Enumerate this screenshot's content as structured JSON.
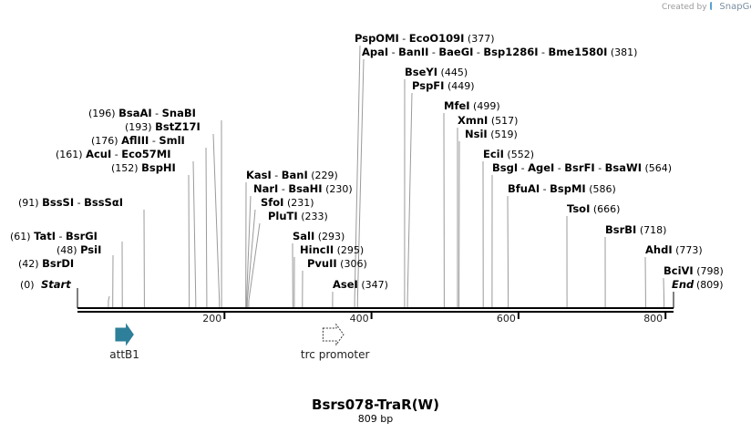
{
  "credit": {
    "text": "Created by",
    "brand": "SnapGene"
  },
  "map": {
    "title": "Bsrs078-TraR(W)",
    "length_label": "809 bp",
    "length": 809,
    "ticks": [
      "200",
      "400",
      "600",
      "800"
    ],
    "tick_values": [
      200,
      400,
      600,
      800
    ],
    "start_label": "Start",
    "start_pos": "(0)",
    "end_label": "End",
    "end_pos": "(809)",
    "features": [
      {
        "name": "attB1",
        "start": 52,
        "end": 76,
        "strand": "forward",
        "color": "#2e7f9a",
        "filled": true
      },
      {
        "name": "trc promoter",
        "start": 334,
        "end": 362,
        "strand": "forward",
        "color": "#ffffff",
        "filled": false
      }
    ],
    "sites": [
      {
        "names": [
          "BsrDI"
        ],
        "pos": 42,
        "pos_label": "(42)"
      },
      {
        "names": [
          "PsiI"
        ],
        "pos": 48,
        "pos_label": "(48)"
      },
      {
        "names": [
          "TatI",
          "BsrGI"
        ],
        "pos": 61,
        "pos_label": "(61)"
      },
      {
        "names": [
          "BssSI",
          "BssSαI"
        ],
        "pos": 91,
        "pos_label": "(91)"
      },
      {
        "names": [
          "BspHI"
        ],
        "pos": 152,
        "pos_label": "(152)"
      },
      {
        "names": [
          "AcuI",
          "Eco57MI"
        ],
        "pos": 161,
        "pos_label": "(161)"
      },
      {
        "names": [
          "AflIII",
          "SmlI"
        ],
        "pos": 176,
        "pos_label": "(176)"
      },
      {
        "names": [
          "BstZ17I"
        ],
        "pos": 193,
        "pos_label": "(193)"
      },
      {
        "names": [
          "BsaAI",
          "SnaBI"
        ],
        "pos": 196,
        "pos_label": "(196)"
      },
      {
        "names": [
          "KasI",
          "BanI"
        ],
        "pos": 229,
        "pos_label": "(229)"
      },
      {
        "names": [
          "NarI",
          "BsaHI"
        ],
        "pos": 230,
        "pos_label": "(230)"
      },
      {
        "names": [
          "SfoI"
        ],
        "pos": 231,
        "pos_label": "(231)"
      },
      {
        "names": [
          "PluTI"
        ],
        "pos": 233,
        "pos_label": "(233)"
      },
      {
        "names": [
          "SalI"
        ],
        "pos": 293,
        "pos_label": "(293)"
      },
      {
        "names": [
          "HincII"
        ],
        "pos": 295,
        "pos_label": "(295)"
      },
      {
        "names": [
          "PvuII"
        ],
        "pos": 306,
        "pos_label": "(306)"
      },
      {
        "names": [
          "AseI"
        ],
        "pos": 347,
        "pos_label": "(347)"
      },
      {
        "names": [
          "PspOMI",
          "EcoO109I"
        ],
        "pos": 377,
        "pos_label": "(377)"
      },
      {
        "names": [
          "ApaI",
          "BanII",
          "BaeGI",
          "Bsp1286I",
          "Bme1580I"
        ],
        "pos": 381,
        "pos_label": "(381)"
      },
      {
        "names": [
          "BseYI"
        ],
        "pos": 445,
        "pos_label": "(445)"
      },
      {
        "names": [
          "PspFI"
        ],
        "pos": 449,
        "pos_label": "(449)"
      },
      {
        "names": [
          "MfeI"
        ],
        "pos": 499,
        "pos_label": "(499)"
      },
      {
        "names": [
          "XmnI"
        ],
        "pos": 517,
        "pos_label": "(517)"
      },
      {
        "names": [
          "NsiI"
        ],
        "pos": 519,
        "pos_label": "(519)"
      },
      {
        "names": [
          "EciI"
        ],
        "pos": 552,
        "pos_label": "(552)"
      },
      {
        "names": [
          "BsgI",
          "AgeI",
          "BsrFI",
          "BsaWI"
        ],
        "pos": 564,
        "pos_label": "(564)"
      },
      {
        "names": [
          "BfuAI",
          "BspMI"
        ],
        "pos": 586,
        "pos_label": "(586)"
      },
      {
        "names": [
          "TsoI"
        ],
        "pos": 666,
        "pos_label": "(666)"
      },
      {
        "names": [
          "BsrBI"
        ],
        "pos": 718,
        "pos_label": "(718)"
      },
      {
        "names": [
          "AhdI"
        ],
        "pos": 773,
        "pos_label": "(773)"
      },
      {
        "names": [
          "BciVI"
        ],
        "pos": 798,
        "pos_label": "(798)"
      }
    ]
  }
}
